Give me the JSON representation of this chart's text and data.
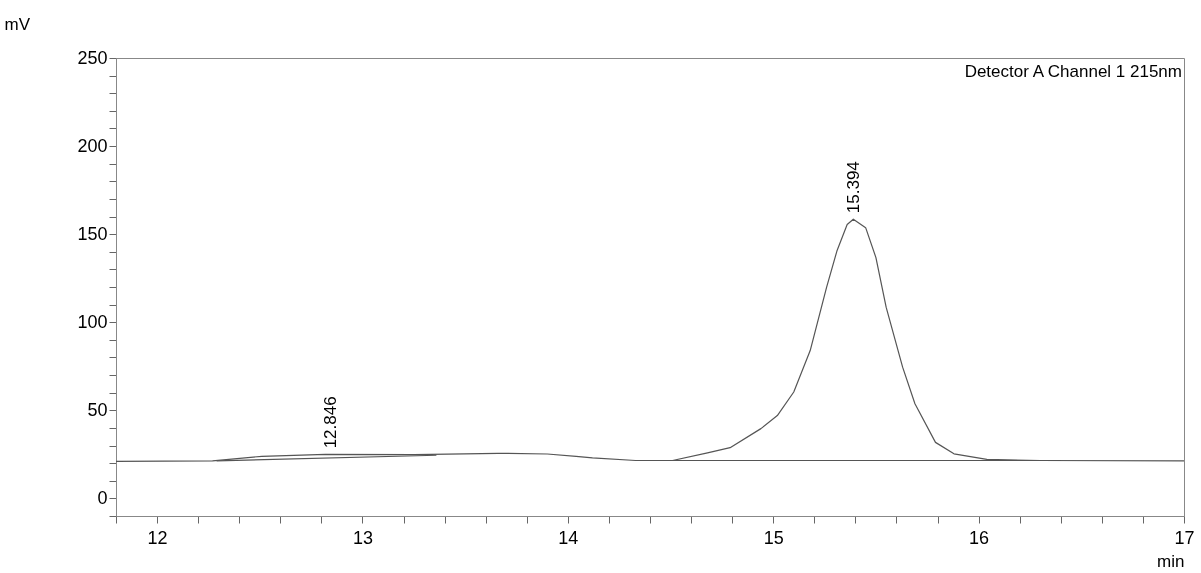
{
  "chart_data": {
    "type": "line",
    "xlabel": "min",
    "ylabel": "mV",
    "xlim": [
      11.8,
      17
    ],
    "ylim": [
      -10,
      250
    ],
    "xticks": [
      {
        "value": 11.8,
        "label": null
      },
      12,
      {
        "value": 12.2,
        "label": null
      },
      {
        "value": 12.4,
        "label": null
      },
      {
        "value": 12.6,
        "label": null
      },
      {
        "value": 12.8,
        "label": null
      },
      13,
      {
        "value": 13.2,
        "label": null
      },
      {
        "value": 13.4,
        "label": null
      },
      {
        "value": 13.6,
        "label": null
      },
      {
        "value": 13.8,
        "label": null
      },
      14,
      {
        "value": 14.2,
        "label": null
      },
      {
        "value": 14.4,
        "label": null
      },
      {
        "value": 14.6,
        "label": null
      },
      {
        "value": 14.8,
        "label": null
      },
      15,
      {
        "value": 15.2,
        "label": null
      },
      {
        "value": 15.4,
        "label": null
      },
      {
        "value": 15.6,
        "label": null
      },
      {
        "value": 15.8,
        "label": null
      },
      16,
      {
        "value": 16.2,
        "label": null
      },
      {
        "value": 16.4,
        "label": null
      },
      {
        "value": 16.6,
        "label": null
      },
      {
        "value": 16.8,
        "label": null
      },
      17
    ],
    "yticks": [
      {
        "value": -10,
        "label": null
      },
      0,
      {
        "value": 10,
        "label": null
      },
      {
        "value": 20,
        "label": null
      },
      {
        "value": 30,
        "label": null
      },
      {
        "value": 40,
        "label": null
      },
      50,
      {
        "value": 60,
        "label": null
      },
      {
        "value": 70,
        "label": null
      },
      {
        "value": 80,
        "label": null
      },
      {
        "value": 90,
        "label": null
      },
      100,
      {
        "value": 110,
        "label": null
      },
      {
        "value": 120,
        "label": null
      },
      {
        "value": 130,
        "label": null
      },
      {
        "value": 140,
        "label": null
      },
      150,
      {
        "value": 160,
        "label": null
      },
      {
        "value": 170,
        "label": null
      },
      {
        "value": 180,
        "label": null
      },
      {
        "value": 190,
        "label": null
      },
      200,
      {
        "value": 210,
        "label": null
      },
      {
        "value": 220,
        "label": null
      },
      {
        "value": 230,
        "label": null
      },
      {
        "value": 240,
        "label": null
      },
      250
    ],
    "grid": false,
    "series": [
      {
        "color": "#555555",
        "x": [
          11.8,
          12.27,
          12.51,
          12.82,
          13.25,
          13.66,
          13.9,
          14.04,
          14.12,
          14.33,
          14.51,
          14.68,
          14.79,
          14.94,
          15.02,
          15.1,
          15.18,
          15.26,
          15.31,
          15.36,
          15.39,
          15.45,
          15.5,
          15.55,
          15.63,
          15.69,
          15.79,
          15.88,
          16.04,
          16.3,
          17
        ],
        "values": [
          21,
          21.3,
          23.9,
          25,
          24.8,
          25.6,
          25.2,
          23.9,
          23,
          21.5,
          21.5,
          25.8,
          28.8,
          39.6,
          47,
          60.4,
          83.9,
          119.9,
          140.4,
          155.5,
          158.5,
          153.7,
          136.7,
          108.4,
          74.5,
          53.7,
          31.8,
          25.3,
          22.1,
          21.5,
          21.3
        ]
      },
      {
        "color": "#555555",
        "x": [
          12.29,
          13.36
        ],
        "values": [
          21.3,
          24.5
        ]
      },
      {
        "color": "#555555",
        "x": [
          14.5,
          16.3
        ],
        "values": [
          21.5,
          21.5
        ]
      }
    ],
    "annotations": [
      {
        "text": "12.846",
        "x": 12.846,
        "y": 25
      },
      {
        "text": "15.394",
        "x": 15.394,
        "y": 158.5
      },
      "Detector A Channel 1 215nm"
    ]
  }
}
